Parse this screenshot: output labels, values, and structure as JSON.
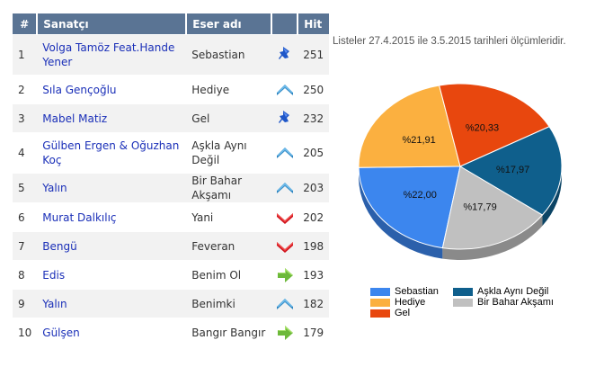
{
  "table": {
    "headers": {
      "rank": "#",
      "artist": "Sanatçı",
      "song": "Eser adı",
      "trend": "",
      "hit": "Hit"
    },
    "rows": [
      {
        "rank": "1",
        "artist": "Volga Tamöz Feat.Hande Yener",
        "song": "Sebastian",
        "trend": "pin-icon",
        "hit": "251"
      },
      {
        "rank": "2",
        "artist": "Sıla Gençoğlu",
        "song": "Hediye",
        "trend": "up-icon",
        "hit": "250"
      },
      {
        "rank": "3",
        "artist": "Mabel Matiz",
        "song": "Gel",
        "trend": "pin-icon",
        "hit": "232"
      },
      {
        "rank": "4",
        "artist": "Gülben Ergen & Oğuzhan Koç",
        "song": "Aşkla Aynı Değil",
        "trend": "up-icon",
        "hit": "205"
      },
      {
        "rank": "5",
        "artist": "Yalın",
        "song": "Bir Bahar Akşamı",
        "trend": "up-icon",
        "hit": "203"
      },
      {
        "rank": "6",
        "artist": "Murat Dalkılıç",
        "song": "Yani",
        "trend": "down-icon",
        "hit": "202"
      },
      {
        "rank": "7",
        "artist": "Bengü",
        "song": "Feveran",
        "trend": "down-icon",
        "hit": "198"
      },
      {
        "rank": "8",
        "artist": "Edis",
        "song": "Benim Ol",
        "trend": "new-arrow-icon",
        "hit": "193"
      },
      {
        "rank": "9",
        "artist": "Yalın",
        "song": "Benimki",
        "trend": "up-icon",
        "hit": "182"
      },
      {
        "rank": "10",
        "artist": "Gülşen",
        "song": "Bangır Bangır",
        "trend": "new-arrow-icon",
        "hit": "179"
      }
    ]
  },
  "period_text": "Listeler 27.4.2015 ile 3.5.2015 tarihleri ölçümleridir.",
  "colors": {
    "header_bg": "#5a7494",
    "link": "#1a2fb8"
  },
  "chart_data": {
    "type": "pie",
    "title": "",
    "slices": [
      {
        "name": "Sebastian",
        "value": 22.0,
        "label": "%22,00",
        "color": "#3c86ee"
      },
      {
        "name": "Aşkla Aynı Değil",
        "value": 17.97,
        "label": "%17,97",
        "color": "#0f5f8c"
      },
      {
        "name": "Bir Bahar Akşamı",
        "value": 17.79,
        "label": "%17,79",
        "color": "#c0c0c0"
      },
      {
        "name": "Gel",
        "value": 20.33,
        "label": "%20,33",
        "color": "#e8470e"
      },
      {
        "name": "Hediye",
        "value": 21.91,
        "label": "%21,91",
        "color": "#fbb040"
      }
    ],
    "legend": [
      {
        "name": "Sebastian",
        "color": "#3c86ee"
      },
      {
        "name": "Aşkla Aynı Değil",
        "color": "#0f5f8c"
      },
      {
        "name": "Hediye",
        "color": "#fbb040"
      },
      {
        "name": "Bir Bahar Akşamı",
        "color": "#c0c0c0"
      },
      {
        "name": "Gel",
        "color": "#e8470e"
      }
    ],
    "legend_position": "bottom"
  }
}
